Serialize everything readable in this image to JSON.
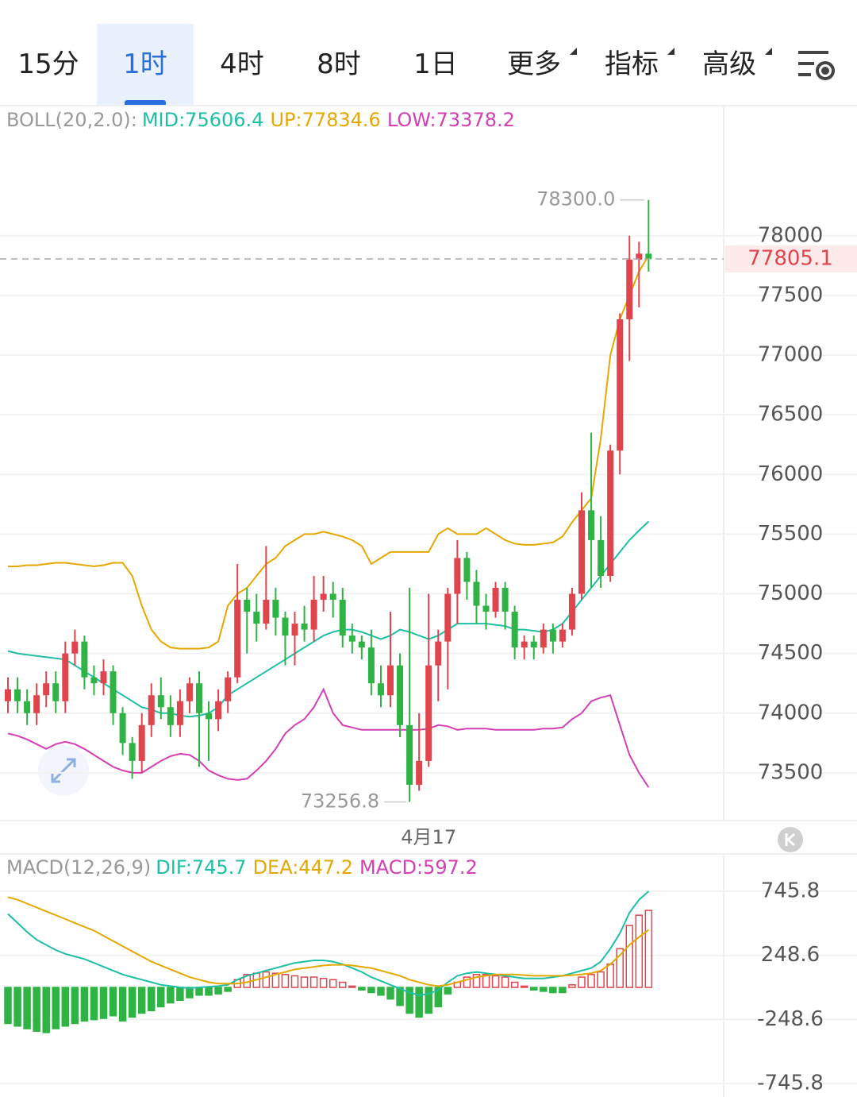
{
  "tabs": [
    "15分",
    "1时",
    "4时",
    "8时",
    "1日",
    "更多",
    "指标",
    "高级"
  ],
  "chart_data": [
    {
      "type": "candlestick",
      "indicator": "BOLL(20,2.0):",
      "up_color": "#e0444d",
      "down_color": "#2fb344",
      "ylim": [
        73100,
        79090
      ],
      "yticks": [
        73500,
        74000,
        74500,
        75000,
        75500,
        76000,
        76500,
        77000,
        77500,
        78000
      ],
      "grid": true,
      "high_label": "78300.0",
      "low_label": "73256.8",
      "categories": [
        null,
        null,
        null,
        null,
        null,
        null,
        null,
        null,
        null,
        null,
        null,
        null,
        null,
        null,
        null,
        null,
        null,
        null,
        null,
        null,
        null,
        null,
        null,
        null,
        null,
        null,
        null,
        null,
        null,
        null,
        null,
        null,
        null,
        null,
        null,
        null,
        null,
        null,
        null,
        null,
        null,
        null,
        null,
        null,
        "4月17",
        null,
        null,
        null,
        null,
        null,
        null,
        null,
        null,
        null,
        null,
        null,
        null,
        null,
        null,
        null,
        null,
        null,
        null,
        null,
        null,
        null,
        null,
        null
      ],
      "candles": {
        "open": [
          74100,
          74200,
          74100,
          74000,
          74150,
          74250,
          74100,
          74500,
          74600,
          74300,
          74250,
          74350,
          74000,
          73750,
          73600,
          73900,
          74150,
          74050,
          73900,
          74100,
          74250,
          74000,
          73950,
          74100,
          74300,
          74950,
          74850,
          74750,
          74950,
          74800,
          74650,
          74750,
          74700,
          74950,
          75000,
          74950,
          74650,
          74600,
          74550,
          74250,
          74150,
          74400,
          73900,
          73400,
          73600,
          74400,
          74600,
          75000,
          75300,
          75100,
          74900,
          74850,
          75050,
          74850,
          74550,
          74600,
          74550,
          74700,
          74600,
          74700,
          75000,
          75700,
          75450,
          75150,
          76200,
          77300,
          77800,
          77850
        ],
        "high": [
          74300,
          74300,
          74200,
          74250,
          74350,
          74350,
          74600,
          74700,
          74650,
          74400,
          74450,
          74400,
          74050,
          73800,
          74000,
          74250,
          74300,
          74150,
          74200,
          74300,
          74350,
          74100,
          74200,
          74350,
          75250,
          75050,
          75000,
          75400,
          75050,
          74850,
          74850,
          74900,
          75150,
          75150,
          75100,
          75050,
          74750,
          74650,
          74700,
          74400,
          74850,
          74500,
          75050,
          74000,
          75000,
          74700,
          75050,
          75450,
          75350,
          75200,
          75000,
          75100,
          75100,
          74900,
          74650,
          74650,
          74750,
          74750,
          74750,
          75050,
          75850,
          76350,
          75650,
          76250,
          77350,
          78000,
          77950,
          78300
        ],
        "low": [
          74000,
          74000,
          73900,
          73900,
          74050,
          74000,
          74000,
          74400,
          74200,
          74150,
          74150,
          73900,
          73650,
          73450,
          73500,
          73800,
          73950,
          73800,
          73800,
          74000,
          73550,
          73600,
          73850,
          74000,
          74250,
          74500,
          74600,
          74700,
          74650,
          74400,
          74400,
          74600,
          74600,
          74850,
          74800,
          74550,
          74500,
          74450,
          74150,
          74050,
          74050,
          73800,
          73256.8,
          73350,
          73550,
          74100,
          74200,
          74750,
          74950,
          74750,
          74700,
          74800,
          74700,
          74450,
          74450,
          74450,
          74500,
          74500,
          74550,
          74650,
          74950,
          75050,
          75050,
          75100,
          76000,
          76950,
          77400,
          77700
        ],
        "close": [
          74200,
          74100,
          74000,
          74150,
          74250,
          74100,
          74500,
          74600,
          74300,
          74250,
          74350,
          74000,
          73750,
          73600,
          73900,
          74150,
          74050,
          73900,
          74100,
          74250,
          74000,
          73950,
          74100,
          74300,
          74950,
          74850,
          74750,
          74950,
          74800,
          74650,
          74750,
          74700,
          74950,
          75000,
          74950,
          74650,
          74600,
          74550,
          74250,
          74150,
          74400,
          73900,
          73400,
          73600,
          74400,
          74600,
          75000,
          75300,
          75100,
          74900,
          74850,
          75050,
          74850,
          74550,
          74600,
          74550,
          74700,
          74600,
          74700,
          75000,
          75700,
          75450,
          75150,
          76200,
          77300,
          77800,
          77850,
          77805.1
        ]
      },
      "series": [
        {
          "name": "MID",
          "legend": "MID:75606.4",
          "color": "#1dbfa5",
          "values": [
            74520,
            74500,
            74490,
            74480,
            74470,
            74460,
            74450,
            74400,
            74350,
            74300,
            74250,
            74200,
            74150,
            74100,
            74050,
            74030,
            74000,
            74000,
            73980,
            73970,
            73980,
            74000,
            74050,
            74150,
            74200,
            74250,
            74300,
            74350,
            74400,
            74450,
            74500,
            74550,
            74600,
            74650,
            74680,
            74700,
            74700,
            74680,
            74650,
            74620,
            74650,
            74700,
            74680,
            74650,
            74620,
            74650,
            74700,
            74750,
            74750,
            74750,
            74750,
            74740,
            74730,
            74700,
            74700,
            74690,
            74680,
            74700,
            74750,
            74850,
            74950,
            75050,
            75150,
            75250,
            75350,
            75450,
            75530,
            75606.4
          ]
        },
        {
          "name": "UP",
          "legend": "UP:77834.6",
          "color": "#e6a800",
          "values": [
            75230,
            75230,
            75240,
            75240,
            75250,
            75260,
            75260,
            75250,
            75240,
            75230,
            75240,
            75260,
            75260,
            75150,
            74900,
            74700,
            74600,
            74550,
            74540,
            74540,
            74540,
            74550,
            74600,
            74900,
            75000,
            75050,
            75150,
            75250,
            75300,
            75400,
            75450,
            75500,
            75500,
            75520,
            75500,
            75480,
            75450,
            75400,
            75250,
            75300,
            75350,
            75350,
            75350,
            75350,
            75350,
            75500,
            75550,
            75500,
            75500,
            75500,
            75550,
            75500,
            75450,
            75420,
            75410,
            75410,
            75420,
            75430,
            75480,
            75600,
            75700,
            75800,
            76300,
            77000,
            77300,
            77500,
            77700,
            77834.6
          ]
        },
        {
          "name": "LOW",
          "legend": "LOW:73378.2",
          "color": "#d63eb5",
          "values": [
            73830,
            73810,
            73780,
            73740,
            73700,
            73740,
            73760,
            73740,
            73700,
            73650,
            73600,
            73550,
            73520,
            73500,
            73500,
            73550,
            73600,
            73640,
            73660,
            73650,
            73600,
            73520,
            73480,
            73450,
            73440,
            73450,
            73520,
            73600,
            73700,
            73830,
            73900,
            73950,
            74050,
            74200,
            74000,
            73900,
            73880,
            73860,
            73860,
            73860,
            73860,
            73860,
            73860,
            73860,
            73870,
            73900,
            73890,
            73860,
            73870,
            73870,
            73870,
            73860,
            73860,
            73860,
            73860,
            73860,
            73870,
            73870,
            73880,
            73950,
            74000,
            74100,
            74130,
            74150,
            73900,
            73650,
            73500,
            73378.2
          ]
        }
      ]
    },
    {
      "type": "macd",
      "indicator": "MACD(12,26,9)",
      "ylim": [
        -850,
        1023
      ],
      "yticks": [
        -745.8,
        -248.6,
        248.6,
        745.8
      ],
      "grid": true,
      "series": [
        {
          "name": "DIF",
          "legend": "DIF:745.7",
          "color": "#1dbfa5",
          "values": [
            570,
            500,
            430,
            370,
            330,
            290,
            260,
            240,
            220,
            190,
            160,
            130,
            100,
            80,
            60,
            40,
            20,
            10,
            0,
            -5,
            0,
            5,
            10,
            20,
            60,
            90,
            110,
            130,
            150,
            170,
            190,
            200,
            210,
            210,
            200,
            180,
            150,
            120,
            80,
            50,
            20,
            -10,
            -40,
            -60,
            -50,
            -20,
            40,
            90,
            110,
            120,
            110,
            100,
            90,
            80,
            70,
            70,
            70,
            80,
            90,
            110,
            130,
            150,
            200,
            300,
            420,
            580,
            680,
            745.7
          ]
        },
        {
          "name": "DEA",
          "legend": "DEA:447.2",
          "color": "#e6a800",
          "values": [
            700,
            680,
            650,
            620,
            590,
            560,
            530,
            500,
            470,
            440,
            400,
            360,
            320,
            280,
            240,
            200,
            170,
            140,
            110,
            80,
            60,
            40,
            30,
            30,
            30,
            40,
            60,
            80,
            100,
            120,
            140,
            150,
            160,
            170,
            175,
            175,
            170,
            160,
            150,
            130,
            110,
            90,
            60,
            40,
            20,
            10,
            20,
            40,
            60,
            80,
            90,
            100,
            100,
            100,
            95,
            90,
            90,
            90,
            90,
            95,
            100,
            110,
            130,
            180,
            250,
            330,
            390,
            447.2
          ]
        },
        {
          "name": "MACD",
          "legend": "MACD:597.2",
          "color": "#d63eb5",
          "up_color": "#e0444d",
          "down_color": "#2fb344",
          "values": [
            -280,
            -300,
            -320,
            -340,
            -350,
            -320,
            -300,
            -280,
            -260,
            -250,
            -240,
            -220,
            -260,
            -230,
            -200,
            -180,
            -150,
            -120,
            -100,
            -80,
            -60,
            -60,
            -50,
            -30,
            60,
            100,
            110,
            120,
            110,
            100,
            90,
            80,
            80,
            70,
            60,
            40,
            10,
            -20,
            -40,
            -60,
            -90,
            -140,
            -200,
            -230,
            -200,
            -150,
            -50,
            40,
            80,
            100,
            100,
            90,
            80,
            40,
            10,
            -20,
            -30,
            -40,
            -40,
            20,
            80,
            100,
            120,
            180,
            300,
            480,
            560,
            597.2
          ]
        }
      ]
    }
  ]
}
